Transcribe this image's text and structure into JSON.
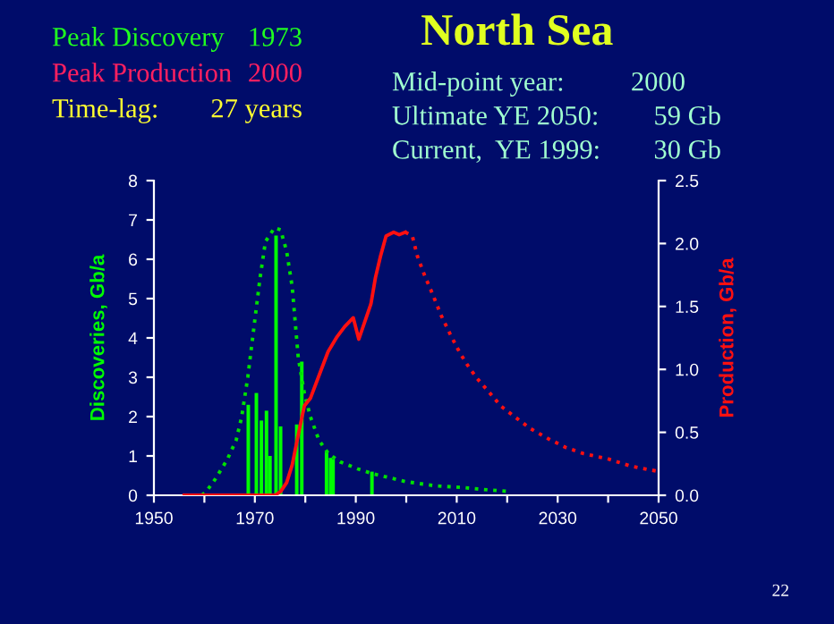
{
  "chart_data": {
    "type": "bar",
    "title": "North Sea",
    "ylabel": "Discoveries, Gb/a",
    "y2label": "Production, Gb/a",
    "annotations": [
      "Peak Discovery",
      "1973",
      "Peak Production",
      "2000",
      "Time-lag:",
      "27 years",
      "Mid-point year:",
      "2000",
      "Ultimate YE 2050:",
      "59 Gb",
      "Current,  YE 1999:",
      "30 Gb",
      "22"
    ],
    "xlim": [
      1950,
      2050
    ],
    "xticks": [
      1950,
      {
        "value": 1960,
        "label": null
      },
      1970,
      {
        "value": 1980,
        "label": null
      },
      1990,
      {
        "value": 2000,
        "label": null
      },
      2010,
      {
        "value": 2020,
        "label": null
      },
      2030,
      {
        "value": 2040,
        "label": null
      },
      2050
    ],
    "ylim": [
      0,
      8
    ],
    "yticks": [
      0,
      1,
      2,
      3,
      4,
      5,
      6,
      7,
      8
    ],
    "y2lim": [
      0,
      2.5
    ],
    "y2ticks": [
      {
        "value": 0,
        "label": "0.0"
      },
      0.5,
      {
        "value": 1,
        "label": "1.0"
      },
      1.5,
      {
        "value": 2,
        "label": "2.0"
      },
      2.5
    ],
    "grid": false,
    "series": [
      {
        "color": "#00ff00",
        "x": [
          1968.7,
          1970.3,
          1971.3,
          1972.3,
          1973,
          1974.2,
          1975.1,
          1978.3,
          1979.3,
          1984.2,
          1985,
          1985.5,
          1993.2
        ],
        "values": [
          2.3,
          2.6,
          1.9,
          2.15,
          1.0,
          6.6,
          1.75,
          1.8,
          3.4,
          1.1,
          0.95,
          0.92,
          0.6
        ]
      },
      {
        "type": "line",
        "color": "#00e000",
        "line_style": "dotted",
        "x": [
          1959.5,
          1960.4,
          1962.1,
          1964.5,
          1966.3,
          1967.4,
          1968.6,
          1969.8,
          1971,
          1972.1,
          1973.9,
          1975.1,
          1976.3,
          1977.4,
          1978.6,
          1979.8,
          1981,
          1982.7,
          1984.5,
          1986.9,
          1990.4,
          1993.3,
          1999.8,
          2005.7,
          2011,
          2015,
          2020
        ],
        "values": [
          0,
          0.1,
          0.4,
          0.9,
          1.4,
          2.0,
          3.0,
          4.25,
          5.5,
          6.45,
          6.8,
          6.75,
          6.2,
          5.3,
          3.5,
          2.6,
          2.0,
          1.4,
          1.07,
          0.85,
          0.67,
          0.55,
          0.35,
          0.24,
          0.2,
          0.15,
          0.1
        ]
      },
      {
        "type": "line",
        "axis": "y2",
        "color": "#ff1010",
        "line_style": "solid",
        "x": [
          1956,
          1974,
          1975.1,
          1976.3,
          1977.4,
          1978.6,
          1979.8,
          1981,
          1982.7,
          1984.5,
          1986.3,
          1987.8,
          1989.5,
          1990.6,
          1991.8,
          1993,
          1993.9,
          1994.9,
          1996,
          1997.5,
          1998.6,
          1999.8
        ],
        "values": [
          0,
          0,
          0.03,
          0.1,
          0.24,
          0.48,
          0.71,
          0.77,
          0.95,
          1.14,
          1.26,
          1.34,
          1.41,
          1.24,
          1.38,
          1.52,
          1.73,
          1.9,
          2.06,
          2.09,
          2.07,
          2.09
        ]
      },
      {
        "type": "line",
        "axis": "y2",
        "color": "#ff1010",
        "line_style": "dotted",
        "x": [
          1999.8,
          2001.2,
          2002.2,
          2003.6,
          2005.2,
          2006.9,
          2008.7,
          2010.5,
          2012.2,
          2014,
          2016.4,
          2018.7,
          2021.6,
          2024.6,
          2028.1,
          2031.6,
          2035.2,
          2039.9,
          2044.6,
          2049.9
        ],
        "values": [
          2.09,
          2.06,
          1.9,
          1.75,
          1.6,
          1.43,
          1.28,
          1.14,
          1.03,
          0.93,
          0.82,
          0.71,
          0.62,
          0.53,
          0.45,
          0.38,
          0.33,
          0.29,
          0.23,
          0.19
        ]
      }
    ]
  }
}
